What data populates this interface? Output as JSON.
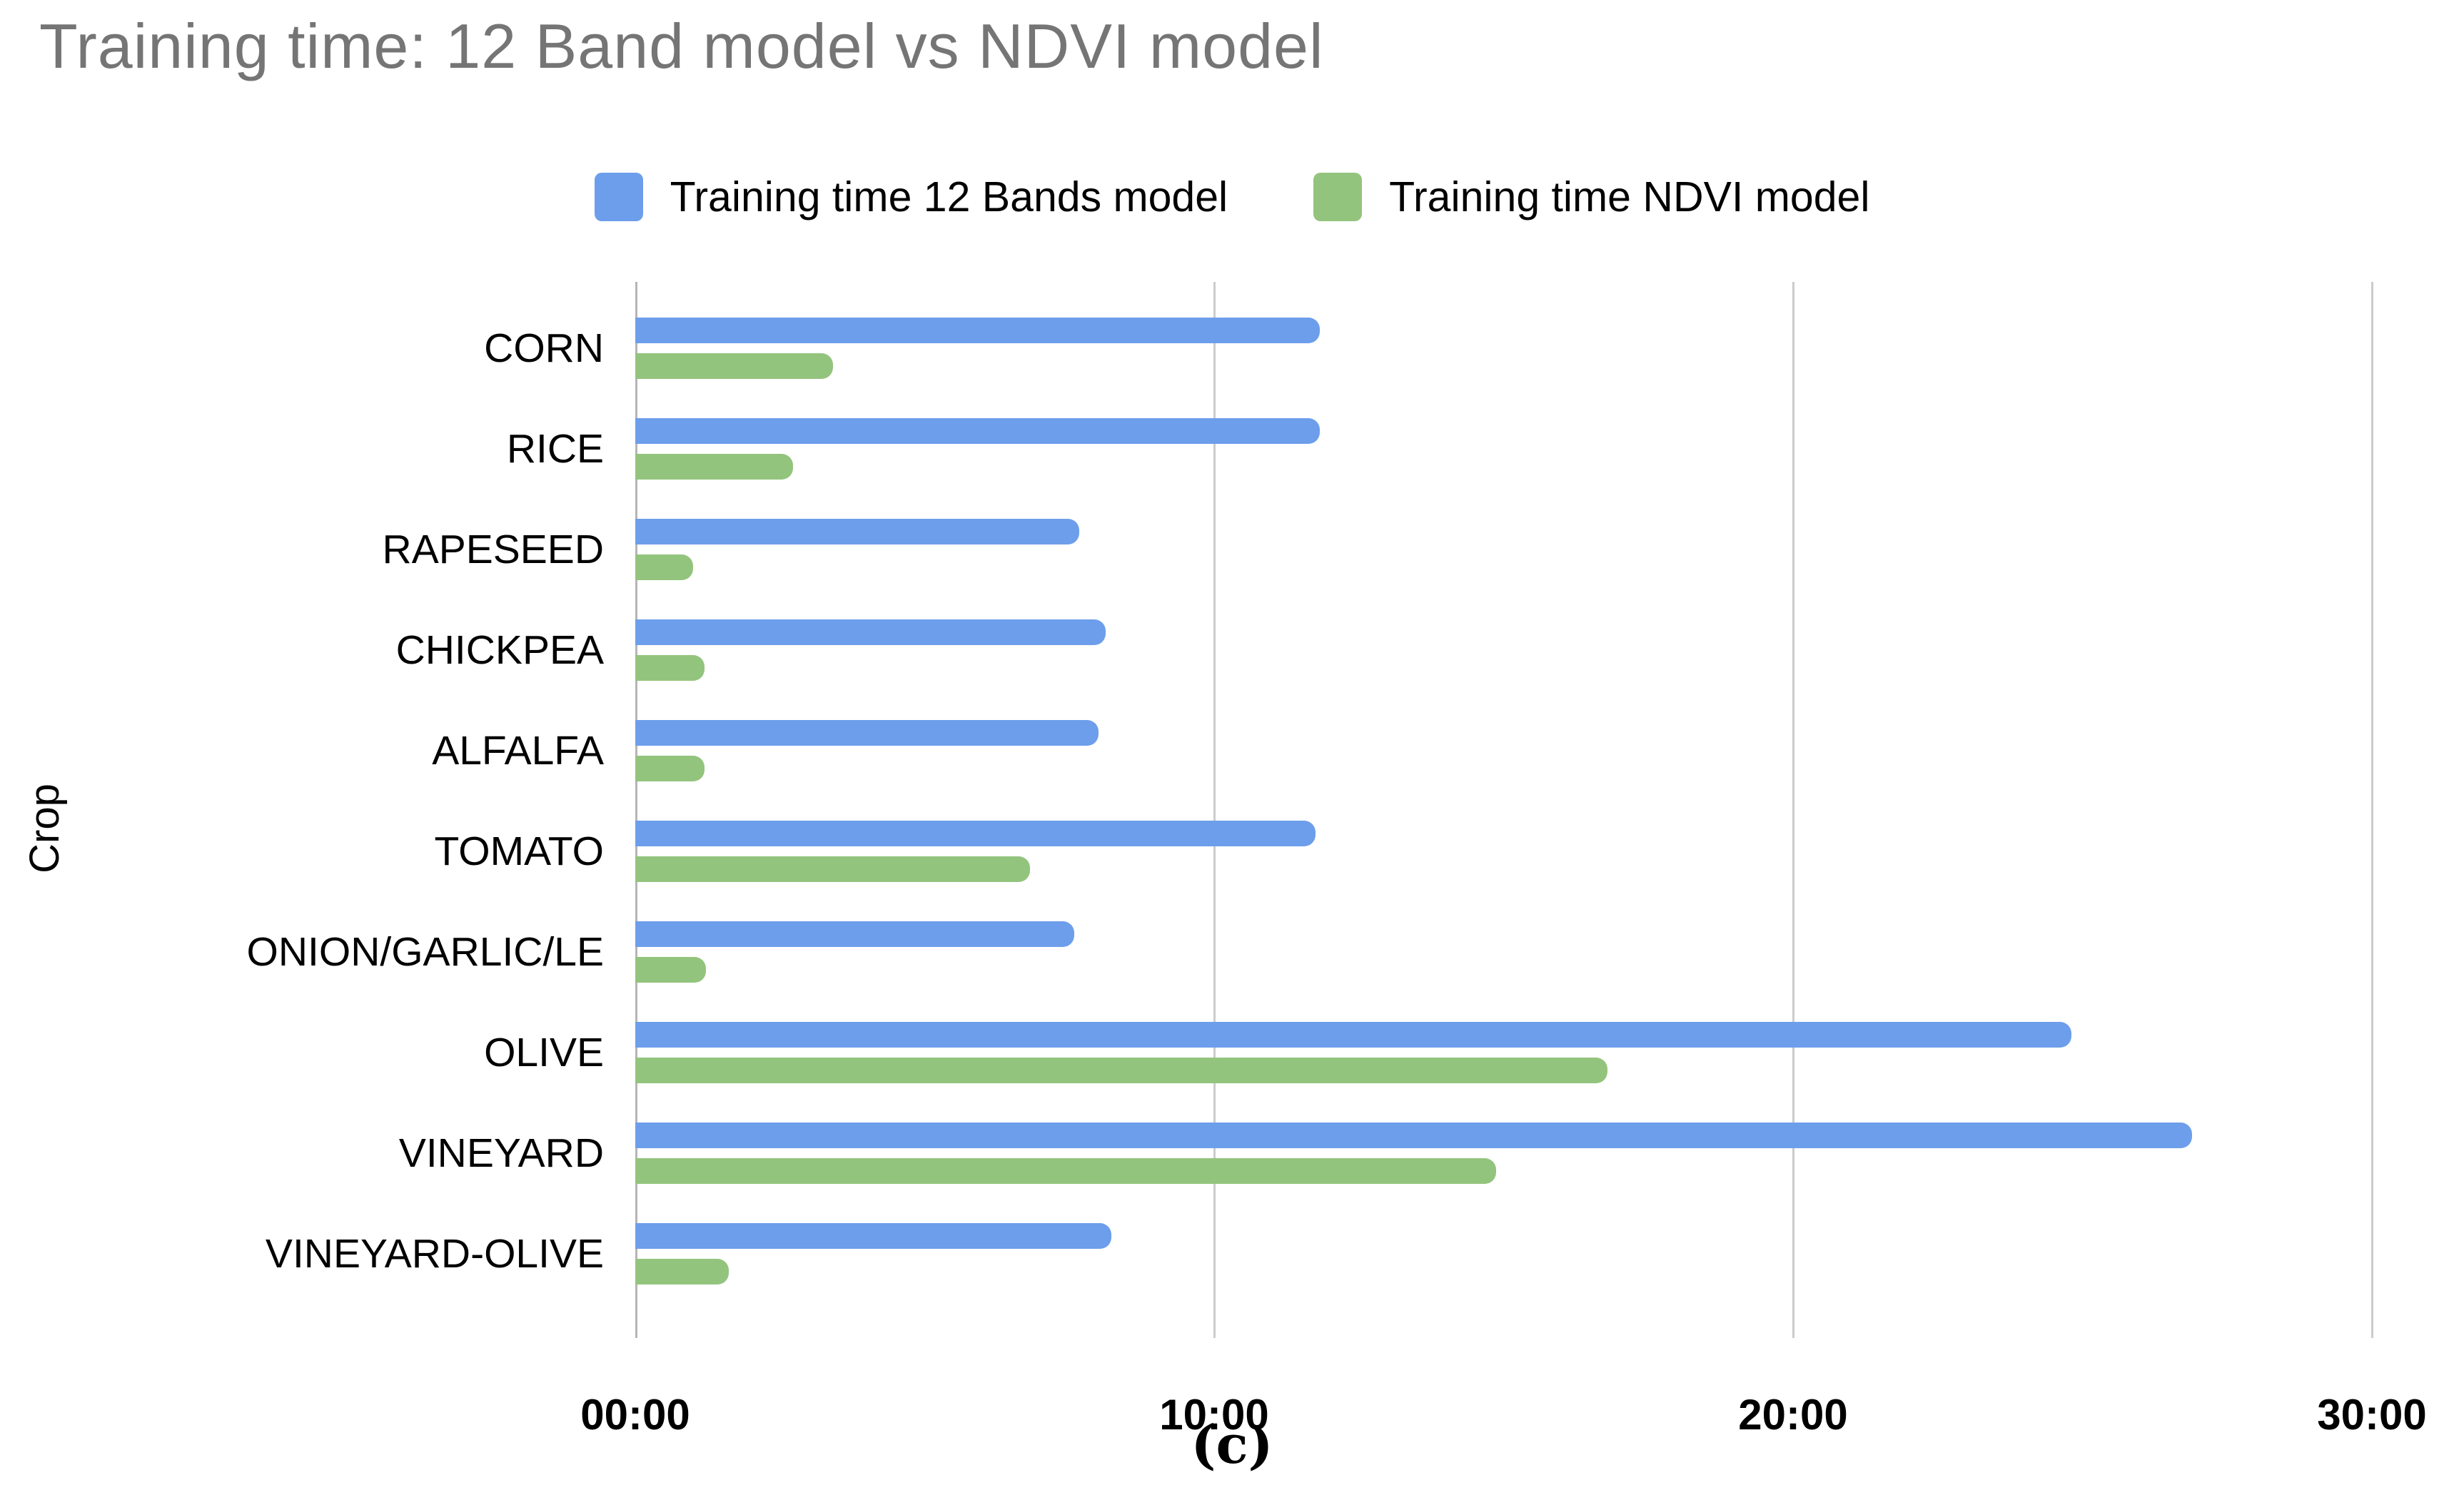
{
  "title": "Training time: 12 Band model vs NDVI model",
  "caption": "(c)",
  "axis": {
    "y_label": "Crop",
    "x_ticks": [
      "00:00",
      "10:00",
      "20:00",
      "30:00"
    ]
  },
  "chart_data": {
    "type": "bar",
    "orientation": "horizontal",
    "title": "Training time: 12 Band model vs NDVI model",
    "ylabel": "Crop",
    "xlim_minutes": [
      0,
      30
    ],
    "x_tick_interval_minutes": 10,
    "x_tick_labels": [
      "00:00",
      "10:00",
      "20:00",
      "30:00"
    ],
    "grid": "vertical-only",
    "legend_position": "top-center",
    "categories": [
      "CORN",
      "RICE",
      "RAPESEED",
      "CHICKPEA",
      "ALFALFA",
      "TOMATO",
      "ONION/GARLIC/LE",
      "OLIVE",
      "VINEYARD",
      "VINEYARD-OLIVE"
    ],
    "series": [
      {
        "name": "Training time 12 Bands model",
        "color": "#6d9eeb",
        "values_minutes": [
          11.83,
          11.83,
          7.67,
          8.13,
          8.0,
          11.75,
          7.58,
          24.82,
          26.9,
          8.23
        ],
        "values_mmss": [
          "11:50",
          "11:50",
          "7:40",
          "8:08",
          "8:00",
          "11:45",
          "7:35",
          "24:49",
          "26:54",
          "8:14"
        ]
      },
      {
        "name": "Training time NDVI model",
        "color": "#93c47d",
        "values_minutes": [
          3.42,
          2.72,
          1.0,
          1.2,
          1.2,
          6.82,
          1.22,
          16.8,
          14.87,
          1.62
        ],
        "values_mmss": [
          "3:25",
          "2:43",
          "1:00",
          "1:12",
          "1:12",
          "6:49",
          "1:13",
          "16:48",
          "14:52",
          "1:37"
        ]
      }
    ]
  }
}
